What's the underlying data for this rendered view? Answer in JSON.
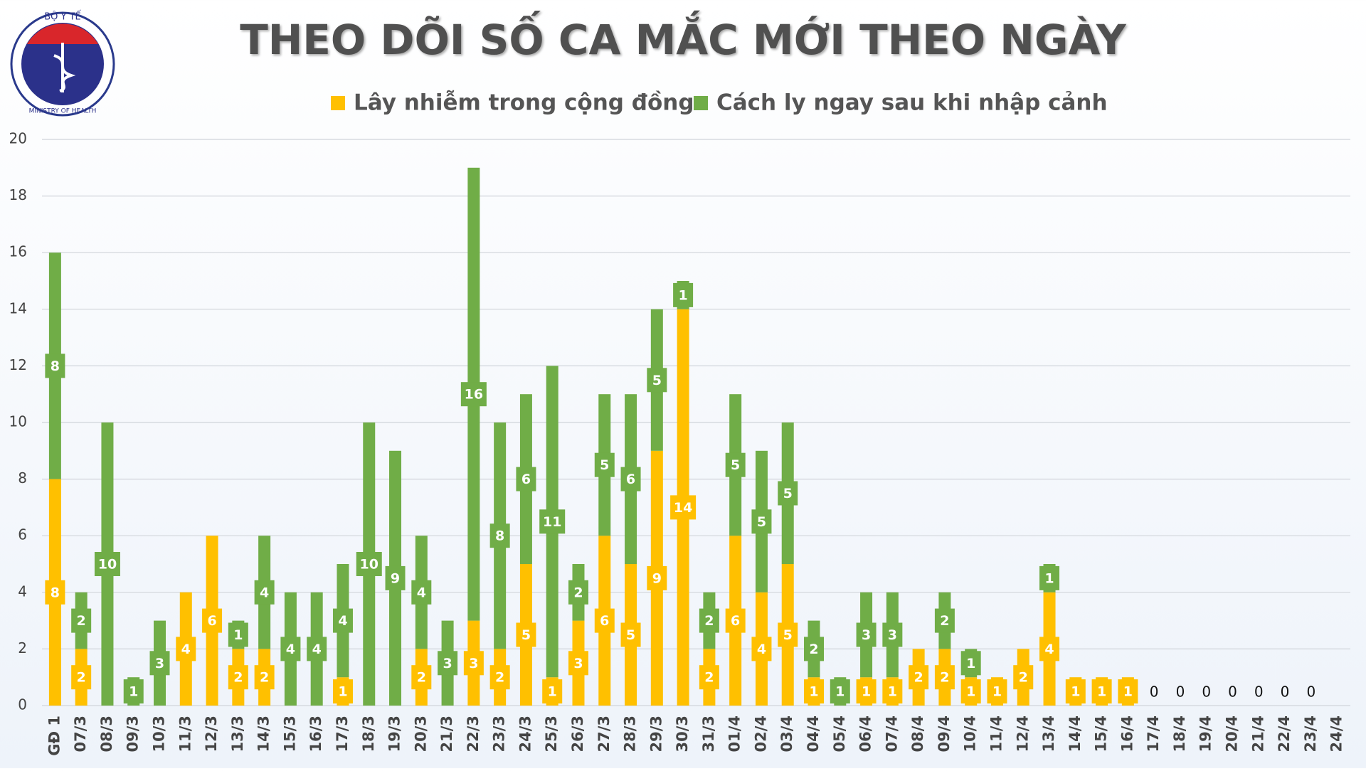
{
  "logo": {
    "top": "BỘ Y TẾ",
    "bottom": "MINISTRY OF HEALTH"
  },
  "chart_data": {
    "type": "stacked_bar",
    "title": "THEO DÕI SỐ CA MẮC MỚI THEO NGÀY",
    "categories": [
      "GĐ 1",
      "07/3",
      "08/3",
      "09/3",
      "10/3",
      "11/3",
      "12/3",
      "13/3",
      "14/3",
      "15/3",
      "16/3",
      "17/3",
      "18/3",
      "19/3",
      "20/3",
      "21/3",
      "22/3",
      "23/3",
      "24/3",
      "25/3",
      "26/3",
      "27/3",
      "28/3",
      "29/3",
      "30/3",
      "31/3",
      "01/4",
      "02/4",
      "03/4",
      "04/4",
      "05/4",
      "06/4",
      "07/4",
      "08/4",
      "09/4",
      "10/4",
      "11/4",
      "12/4",
      "13/4",
      "14/4",
      "15/4",
      "16/4",
      "17/4",
      "18/4",
      "19/4",
      "20/4",
      "21/4",
      "22/4",
      "23/4",
      "24/4"
    ],
    "series": [
      {
        "name": "Lây nhiễm trong cộng đồng",
        "color": "#ffc000",
        "values": [
          8,
          2,
          0,
          0,
          0,
          4,
          6,
          2,
          2,
          0,
          0,
          1,
          0,
          0,
          2,
          0,
          3,
          2,
          5,
          1,
          3,
          6,
          5,
          9,
          14,
          2,
          6,
          4,
          5,
          1,
          0,
          1,
          1,
          2,
          2,
          1,
          1,
          2,
          4,
          1,
          1,
          1,
          0,
          0,
          0,
          0,
          0,
          0,
          0,
          0
        ],
        "value_labels": [
          "8",
          "2",
          null,
          null,
          null,
          "4",
          "6",
          "2",
          "2",
          null,
          null,
          "1",
          null,
          null,
          "2",
          null,
          "3",
          "2",
          "5",
          "1",
          "3",
          "6",
          "5",
          "9",
          "14",
          "2",
          "6",
          "4",
          "5",
          "1",
          null,
          "1",
          "1",
          "2",
          "2",
          "1",
          "1",
          "2",
          "4",
          "1",
          "1",
          "1",
          "0",
          "0",
          "0",
          "0",
          "0",
          "0",
          "0",
          null
        ]
      },
      {
        "name": "Cách ly ngay sau khi nhập cảnh",
        "color": "#70ad47",
        "values": [
          8,
          2,
          10,
          1,
          3,
          0,
          0,
          1,
          4,
          4,
          4,
          4,
          10,
          9,
          4,
          3,
          16,
          8,
          6,
          11,
          2,
          5,
          6,
          5,
          1,
          2,
          5,
          5,
          5,
          2,
          1,
          3,
          3,
          0,
          2,
          1,
          0,
          0,
          1,
          0,
          0,
          0,
          0,
          0,
          0,
          0,
          0,
          0,
          0,
          0
        ],
        "value_labels": [
          "8",
          "2",
          "10",
          "1",
          "3",
          null,
          null,
          "1",
          "4",
          "4",
          "4",
          "4",
          "10",
          "9",
          "4",
          "3",
          "16",
          "8",
          "6",
          "11",
          "2",
          "5",
          "6",
          "5",
          "1",
          "2",
          "5",
          "5",
          "5",
          "2",
          "1",
          "3",
          "3",
          null,
          "2",
          "1",
          null,
          null,
          "1",
          null,
          null,
          null,
          null,
          null,
          null,
          null,
          null,
          null,
          null,
          null
        ]
      }
    ],
    "ylim": [
      0,
      20
    ],
    "yticks": [
      0,
      2,
      4,
      6,
      8,
      10,
      12,
      14,
      16,
      18,
      20
    ],
    "grid": true
  }
}
